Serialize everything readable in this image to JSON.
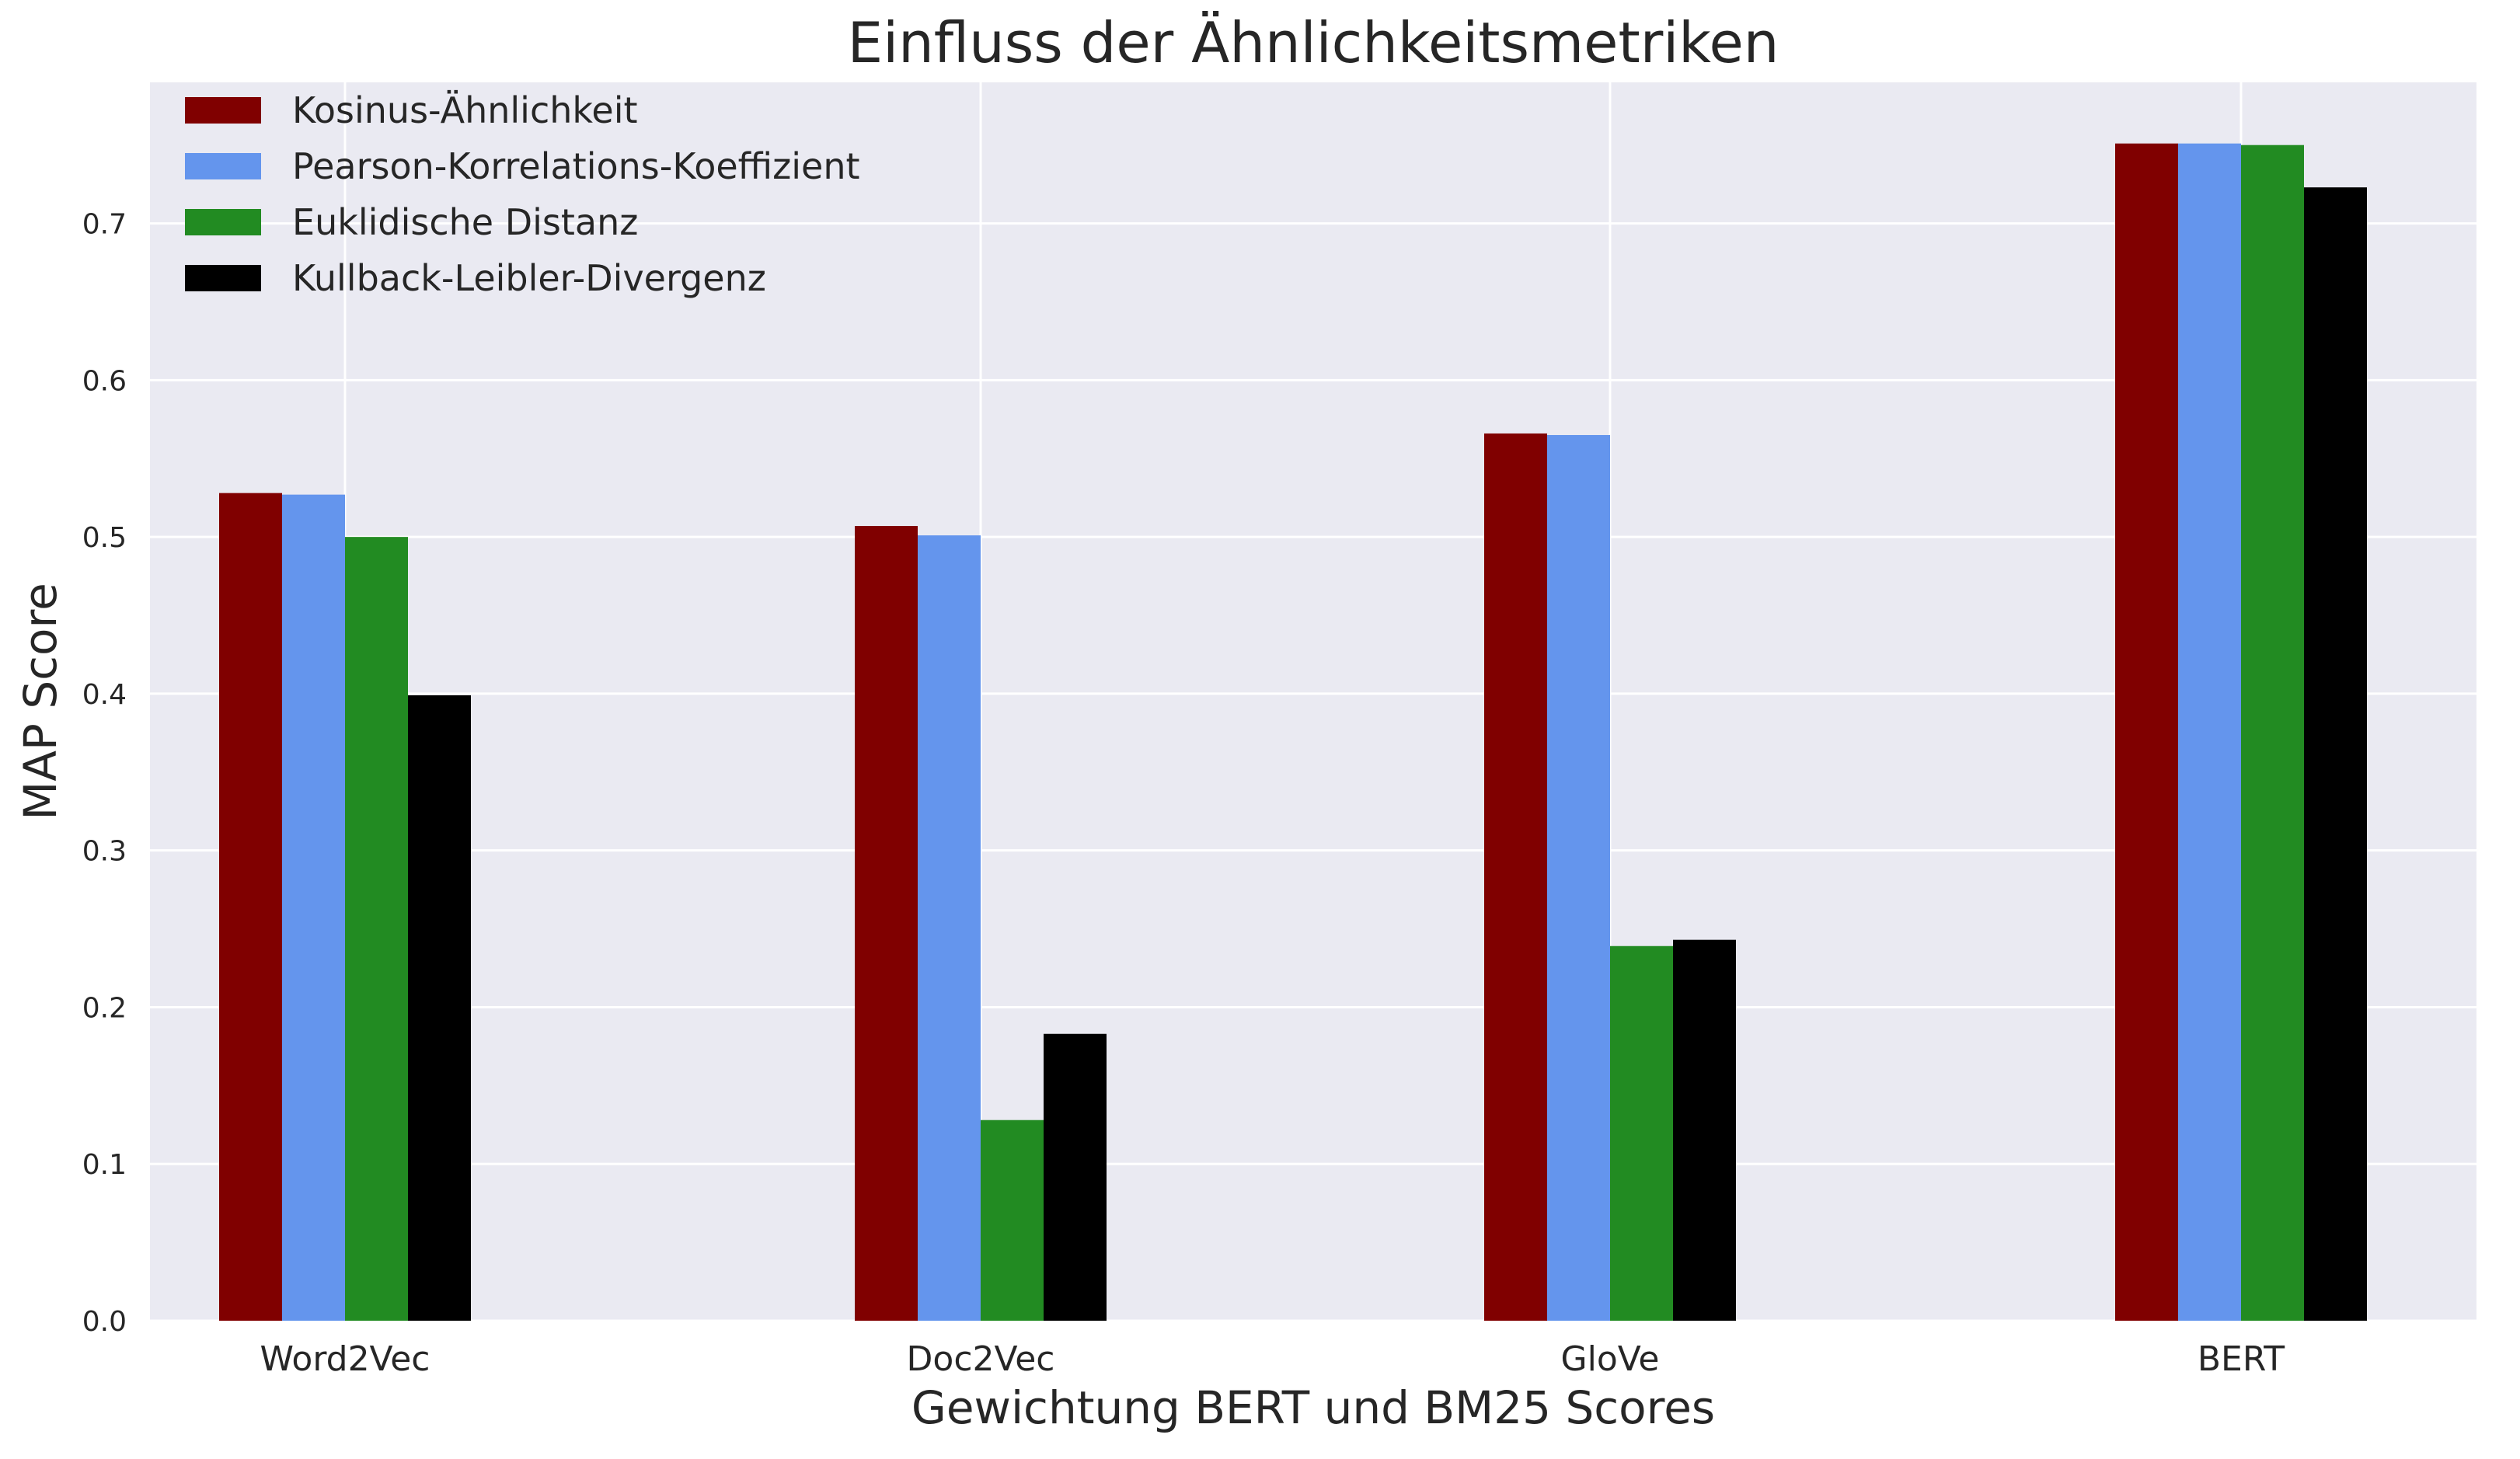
{
  "chart_data": {
    "type": "bar",
    "title": "Einfluss der Ähnlichkeitsmetriken",
    "xlabel": "Gewichtung BERT und BM25 Scores",
    "ylabel": "MAP Score",
    "categories": [
      "Word2Vec",
      "Doc2Vec",
      "GloVe",
      "BERT"
    ],
    "yticks": [
      "0.0",
      "0.1",
      "0.2",
      "0.3",
      "0.4",
      "0.5",
      "0.6",
      "0.7"
    ],
    "ylim": [
      0,
      0.79
    ],
    "grid": true,
    "legend_position": "top-left",
    "background": "#eaeaf2",
    "series": [
      {
        "name": "Kosinus-Ähnlichkeit",
        "color": "#800000",
        "values": [
          0.528,
          0.507,
          0.566,
          0.751
        ]
      },
      {
        "name": "Pearson-Korrelations-Koeffizient",
        "color": "#6495ed",
        "values": [
          0.527,
          0.501,
          0.565,
          0.751
        ]
      },
      {
        "name": "Euklidische Distanz",
        "color": "#228b22",
        "values": [
          0.5,
          0.128,
          0.239,
          0.75
        ]
      },
      {
        "name": "Kullback-Leibler-Divergenz",
        "color": "#000000",
        "values": [
          0.399,
          0.183,
          0.243,
          0.723
        ]
      }
    ]
  }
}
